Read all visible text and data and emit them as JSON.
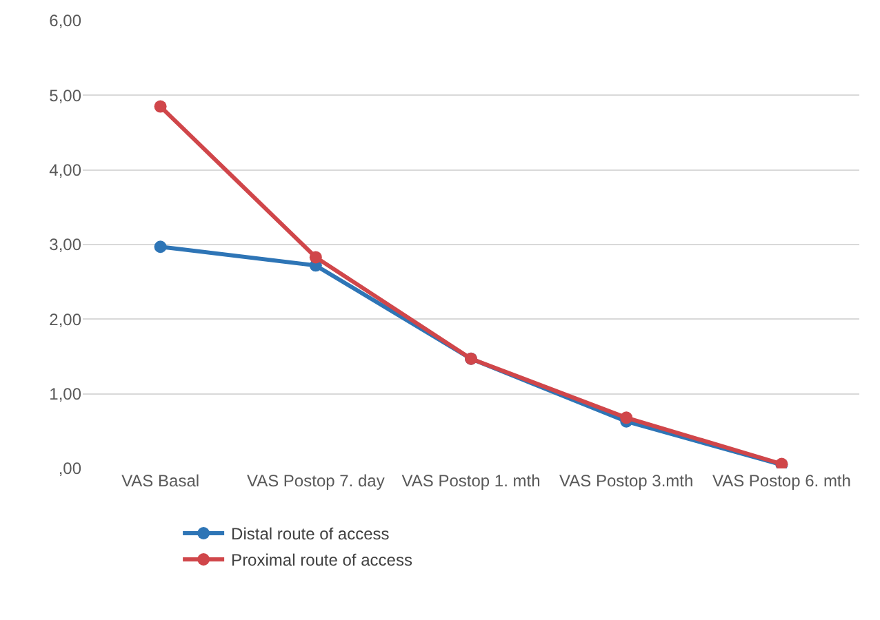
{
  "chart_data": {
    "type": "line",
    "categories": [
      "VAS Basal",
      "VAS Postop 7. day",
      "VAS Postop 1. mth",
      "VAS Postop 3.mth",
      "VAS Postop 6. mth"
    ],
    "series": [
      {
        "name": "Distal route of access",
        "color": "#2e75b6",
        "values": [
          2.97,
          2.72,
          1.47,
          0.63,
          0.05
        ]
      },
      {
        "name": "Proximal route of access",
        "color": "#d0464a",
        "values": [
          4.85,
          2.83,
          1.47,
          0.68,
          0.06
        ]
      }
    ],
    "ylim": [
      0,
      6
    ],
    "yticks": [
      {
        "value": 0,
        "label": ",00"
      },
      {
        "value": 1,
        "label": "1,00"
      },
      {
        "value": 2,
        "label": "2,00"
      },
      {
        "value": 3,
        "label": "3,00"
      },
      {
        "value": 4,
        "label": "4,00"
      },
      {
        "value": 5,
        "label": "5,00"
      },
      {
        "value": 6,
        "label": "6,00"
      }
    ],
    "grid": "y",
    "legend": "bottom left",
    "marker": "circle",
    "line_style": "solid"
  }
}
